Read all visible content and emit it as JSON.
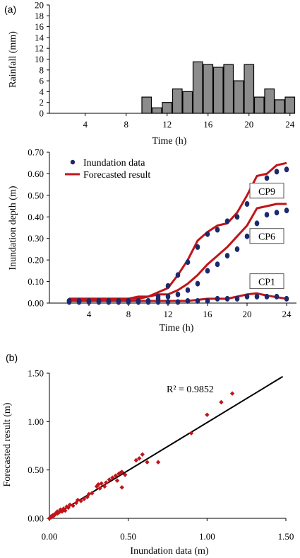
{
  "panel_labels": {
    "a": "(a)",
    "b": "(b)"
  },
  "colors": {
    "bar_fill": "#8c8c8c",
    "bar_edge": "#000000",
    "obs": "#1a2a6c",
    "forecast": "#c0151a",
    "fit_line": "#000000",
    "scatter": "#c0151a"
  },
  "chart_data": [
    {
      "type": "bar",
      "ylabel": "Rainfall (mm)",
      "xlabel": "Time (h)",
      "ylim": [
        0,
        20
      ],
      "yticks": [
        "0",
        "2",
        "4",
        "6",
        "8",
        "10",
        "12",
        "14",
        "16",
        "18",
        "20"
      ],
      "xticks": [
        "4",
        "8",
        "12",
        "16",
        "20",
        "24"
      ],
      "x": [
        1,
        2,
        3,
        4,
        5,
        6,
        7,
        8,
        9,
        10,
        11,
        12,
        13,
        14,
        15,
        16,
        17,
        18,
        19,
        20,
        21,
        22,
        23,
        24
      ],
      "values": [
        0,
        0,
        0,
        0,
        0,
        0,
        0,
        0,
        0,
        3,
        1,
        2,
        4.5,
        4,
        9.5,
        9,
        8.5,
        9,
        6,
        9,
        3,
        4.5,
        2.5,
        3
      ]
    },
    {
      "type": "line",
      "ylabel": "Inundation depth (m)",
      "xlabel": "Time (h)",
      "xlim": [
        0,
        25
      ],
      "ylim": [
        0,
        0.7
      ],
      "yticks": [
        "0.00",
        "0.10",
        "0.20",
        "0.30",
        "0.40",
        "0.50",
        "0.60",
        "0.70"
      ],
      "xticks": [
        "4",
        "8",
        "12",
        "16",
        "20",
        "24"
      ],
      "legend": [
        "Inundation data",
        "Forecasted result"
      ],
      "series": [
        {
          "name": "CP9",
          "obs_x": [
            2,
            3,
            4,
            5,
            6,
            7,
            8,
            9,
            10,
            11,
            12,
            13,
            14,
            15,
            16,
            17,
            18,
            19,
            20,
            21,
            22,
            23,
            24
          ],
          "obs_y": [
            0.01,
            0.01,
            0.01,
            0.01,
            0.01,
            0.01,
            0.01,
            0.01,
            0.01,
            0.03,
            0.08,
            0.13,
            0.19,
            0.26,
            0.32,
            0.34,
            0.38,
            0.4,
            0.46,
            0.53,
            0.58,
            0.61,
            0.62
          ],
          "fc_x": [
            2,
            4,
            6,
            8,
            9,
            10,
            11,
            12,
            13,
            14,
            15,
            16,
            17,
            18,
            19,
            20,
            21,
            22,
            23,
            24
          ],
          "fc_y": [
            0.02,
            0.02,
            0.02,
            0.02,
            0.03,
            0.03,
            0.05,
            0.07,
            0.13,
            0.2,
            0.29,
            0.33,
            0.36,
            0.37,
            0.42,
            0.5,
            0.59,
            0.6,
            0.64,
            0.65
          ]
        },
        {
          "name": "CP6",
          "obs_x": [
            2,
            3,
            4,
            5,
            6,
            7,
            8,
            9,
            10,
            11,
            12,
            13,
            14,
            15,
            16,
            17,
            18,
            19,
            20,
            21,
            22,
            23,
            24
          ],
          "obs_y": [
            0.01,
            0.01,
            0.01,
            0.01,
            0.01,
            0.01,
            0.01,
            0.01,
            0.01,
            0.02,
            0.03,
            0.04,
            0.06,
            0.09,
            0.15,
            0.18,
            0.22,
            0.25,
            0.31,
            0.37,
            0.41,
            0.42,
            0.43
          ],
          "fc_x": [
            2,
            4,
            6,
            8,
            9,
            10,
            11,
            12,
            13,
            14,
            15,
            16,
            17,
            18,
            19,
            20,
            21,
            22,
            23,
            24
          ],
          "fc_y": [
            0.02,
            0.02,
            0.02,
            0.02,
            0.02,
            0.03,
            0.04,
            0.04,
            0.06,
            0.09,
            0.13,
            0.18,
            0.22,
            0.26,
            0.31,
            0.36,
            0.44,
            0.45,
            0.46,
            0.46
          ]
        },
        {
          "name": "CP1",
          "obs_x": [
            2,
            3,
            4,
            5,
            6,
            7,
            8,
            9,
            10,
            11,
            12,
            13,
            14,
            15,
            16,
            17,
            18,
            19,
            20,
            21,
            22,
            23,
            24
          ],
          "obs_y": [
            0.005,
            0.005,
            0.005,
            0.005,
            0.005,
            0.005,
            0.005,
            0.005,
            0.005,
            0.005,
            0.005,
            0.005,
            0.01,
            0.01,
            0.01,
            0.02,
            0.02,
            0.02,
            0.03,
            0.03,
            0.03,
            0.03,
            0.02
          ],
          "fc_x": [
            2,
            4,
            6,
            8,
            10,
            12,
            14,
            16,
            18,
            20,
            21,
            22,
            24
          ],
          "fc_y": [
            0.01,
            0.01,
            0.01,
            0.01,
            0.01,
            0.01,
            0.01,
            0.02,
            0.02,
            0.04,
            0.045,
            0.035,
            0.02
          ]
        }
      ]
    },
    {
      "type": "scatter",
      "xlabel": "Inundation data (m)",
      "ylabel": "Forecasted result (m)",
      "xlim": [
        0,
        1.5
      ],
      "ylim": [
        0,
        1.5
      ],
      "xticks": [
        "0.00",
        "0.50",
        "1.00",
        "1.50"
      ],
      "yticks": [
        "0.00",
        "0.50",
        "1.00",
        "1.50"
      ],
      "annotation": "R² = 0.9852",
      "fit": {
        "slope": 0.99,
        "intercept": 0.0
      },
      "points": [
        [
          0.0,
          0.0
        ],
        [
          0.01,
          0.01
        ],
        [
          0.01,
          0.02
        ],
        [
          0.02,
          0.02
        ],
        [
          0.02,
          0.03
        ],
        [
          0.03,
          0.04
        ],
        [
          0.03,
          0.03
        ],
        [
          0.04,
          0.05
        ],
        [
          0.05,
          0.05
        ],
        [
          0.05,
          0.07
        ],
        [
          0.06,
          0.06
        ],
        [
          0.07,
          0.09
        ],
        [
          0.08,
          0.07
        ],
        [
          0.09,
          0.1
        ],
        [
          0.1,
          0.08
        ],
        [
          0.11,
          0.12
        ],
        [
          0.12,
          0.11
        ],
        [
          0.13,
          0.14
        ],
        [
          0.15,
          0.13
        ],
        [
          0.17,
          0.16
        ],
        [
          0.18,
          0.19
        ],
        [
          0.2,
          0.18
        ],
        [
          0.22,
          0.2
        ],
        [
          0.24,
          0.22
        ],
        [
          0.25,
          0.25
        ],
        [
          0.27,
          0.26
        ],
        [
          0.3,
          0.33
        ],
        [
          0.31,
          0.35
        ],
        [
          0.32,
          0.31
        ],
        [
          0.33,
          0.36
        ],
        [
          0.35,
          0.33
        ],
        [
          0.36,
          0.37
        ],
        [
          0.38,
          0.4
        ],
        [
          0.4,
          0.42
        ],
        [
          0.42,
          0.44
        ],
        [
          0.43,
          0.39
        ],
        [
          0.44,
          0.46
        ],
        [
          0.45,
          0.47
        ],
        [
          0.46,
          0.48
        ],
        [
          0.48,
          0.45
        ],
        [
          0.46,
          0.32
        ],
        [
          0.55,
          0.6
        ],
        [
          0.57,
          0.62
        ],
        [
          0.59,
          0.66
        ],
        [
          0.62,
          0.58
        ],
        [
          0.69,
          0.58
        ],
        [
          0.9,
          0.88
        ],
        [
          1.0,
          1.07
        ],
        [
          1.09,
          1.2
        ],
        [
          1.16,
          1.29
        ]
      ]
    }
  ]
}
